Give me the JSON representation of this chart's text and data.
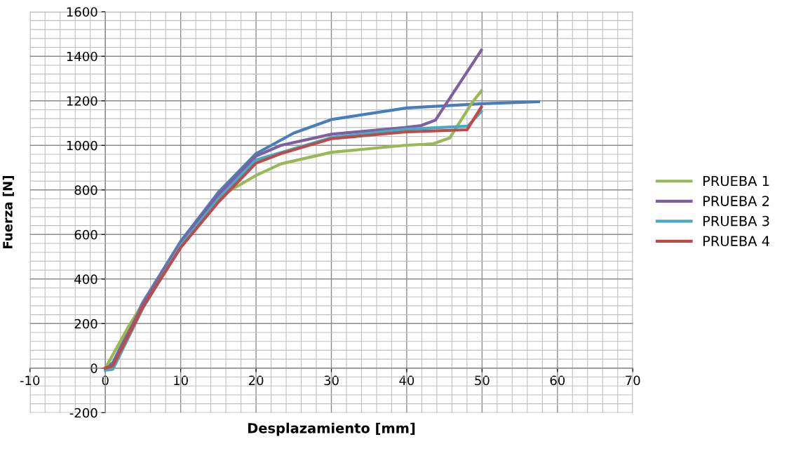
{
  "chart_data": {
    "type": "line",
    "xlabel": "Desplazamiento [mm]",
    "ylabel": "Fuerza [N]",
    "xlim": [
      -10,
      70
    ],
    "xticks": [
      -10,
      0,
      10,
      20,
      30,
      40,
      50,
      60,
      70
    ],
    "ylim": [
      -200,
      1600
    ],
    "yticks": [
      -200,
      0,
      200,
      400,
      600,
      800,
      1000,
      1200,
      1400,
      1600
    ],
    "grid": true,
    "legend": "right",
    "line_style": "solid",
    "marker": "none",
    "series": [
      {
        "color": "#4a7ebb",
        "x": [
          0,
          1,
          5,
          10,
          15,
          20,
          25,
          30,
          40,
          50,
          57.5
        ],
        "values": [
          0,
          25,
          297,
          569,
          789,
          963,
          1055,
          1116,
          1168,
          1187,
          1196
        ]
      },
      {
        "name": "PRUEBA 1",
        "color": "#98b954",
        "x": [
          0,
          1,
          3.1,
          10,
          15,
          20,
          23.3,
          30,
          39.7,
          43.5,
          45.7,
          48.7,
          49.9
        ],
        "values": [
          0,
          60,
          188,
          560,
          767,
          865,
          917,
          969,
          1000,
          1007,
          1033,
          1193,
          1244
        ]
      },
      {
        "name": "PRUEBA 2",
        "color": "#7d60a0",
        "x": [
          0,
          1,
          5,
          10,
          15,
          20,
          23.3,
          30,
          39.7,
          41.9,
          43.8,
          49.9
        ],
        "values": [
          0,
          15,
          290,
          560,
          778,
          952,
          1000,
          1050,
          1080,
          1089,
          1113,
          1427
        ]
      },
      {
        "name": "PRUEBA 3",
        "color": "#46aac5",
        "x": [
          0,
          1,
          5,
          10,
          15,
          20,
          30,
          39.7,
          48.1,
          49.9
        ],
        "values": [
          -10,
          -5,
          270,
          550,
          760,
          935,
          1035,
          1072,
          1086,
          1152
        ]
      },
      {
        "name": "PRUEBA 4",
        "color": "#be4b48",
        "x": [
          0,
          1,
          5,
          10,
          15,
          20,
          23.3,
          30,
          39.7,
          48,
          49.9
        ],
        "values": [
          0,
          10,
          275,
          541,
          745,
          920,
          963,
          1030,
          1060,
          1070,
          1172
        ]
      }
    ]
  }
}
